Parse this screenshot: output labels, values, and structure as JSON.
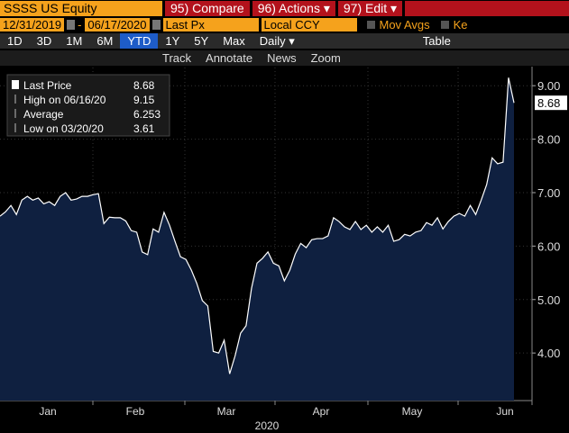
{
  "toolbar": {
    "ticker": "SSSS US Equity",
    "buttons": [
      "95) Compare",
      "96) Actions ▾",
      "97) Edit ▾"
    ]
  },
  "settings": {
    "start_date": "12/31/2019",
    "separator": "-",
    "end_date": "06/17/2020",
    "field": "Last Px",
    "currency": "Local CCY",
    "mov_avgs": "Mov Avgs",
    "key": "Ke"
  },
  "periods": {
    "items": [
      "1D",
      "3D",
      "1M",
      "6M",
      "YTD",
      "1Y",
      "5Y",
      "Max"
    ],
    "selected": "YTD",
    "frequency": "Daily ▾",
    "table": "Table"
  },
  "tools": [
    "Track",
    "Annotate",
    "News",
    "Zoom"
  ],
  "chart_data": {
    "type": "area",
    "color": "#ffffff",
    "fill": "#0f2040",
    "values": [
      6.56,
      6.64,
      6.76,
      6.59,
      6.86,
      6.93,
      6.86,
      6.9,
      6.79,
      6.83,
      6.76,
      6.93,
      7.0,
      6.86,
      6.88,
      6.93,
      6.93,
      6.96,
      6.98,
      6.42,
      6.54,
      6.53,
      6.53,
      6.47,
      6.29,
      6.26,
      5.89,
      5.84,
      6.32,
      6.26,
      6.63,
      6.39,
      6.09,
      5.8,
      5.75,
      5.55,
      5.3,
      4.98,
      4.88,
      4.03,
      4.0,
      4.24,
      3.61,
      3.95,
      4.37,
      4.51,
      5.21,
      5.68,
      5.77,
      5.89,
      5.68,
      5.63,
      5.35,
      5.55,
      5.85,
      6.05,
      5.97,
      6.12,
      6.14,
      6.14,
      6.19,
      6.53,
      6.46,
      6.36,
      6.31,
      6.46,
      6.31,
      6.39,
      6.26,
      6.36,
      6.26,
      6.39,
      6.09,
      6.12,
      6.22,
      6.19,
      6.26,
      6.29,
      6.44,
      6.39,
      6.53,
      6.32,
      6.46,
      6.56,
      6.61,
      6.56,
      6.76,
      6.59,
      6.86,
      7.15,
      7.65,
      7.54,
      7.57,
      9.15,
      8.68
    ],
    "month_labels": [
      "Jan",
      "Feb",
      "Mar",
      "Apr",
      "May",
      "Jun"
    ],
    "xlabel": "2020",
    "ylim": [
      3.11,
      9.34
    ],
    "yticks": [
      {
        "value": 4,
        "label": "4.00"
      },
      {
        "value": 5,
        "label": "5.00"
      },
      {
        "value": 6,
        "label": "6.00"
      },
      {
        "value": 7,
        "label": "7.00"
      },
      {
        "value": 8,
        "label": "8.00"
      },
      {
        "value": 9,
        "label": "9.00"
      }
    ],
    "grid": true,
    "stats": [
      {
        "label": "Last Price",
        "value": 8.68
      },
      {
        "label": "High on 06/16/20",
        "value": 9.15
      },
      {
        "label": "Average",
        "value": 6.253
      },
      {
        "label": "Low on 03/20/20",
        "value": 3.61
      }
    ]
  }
}
